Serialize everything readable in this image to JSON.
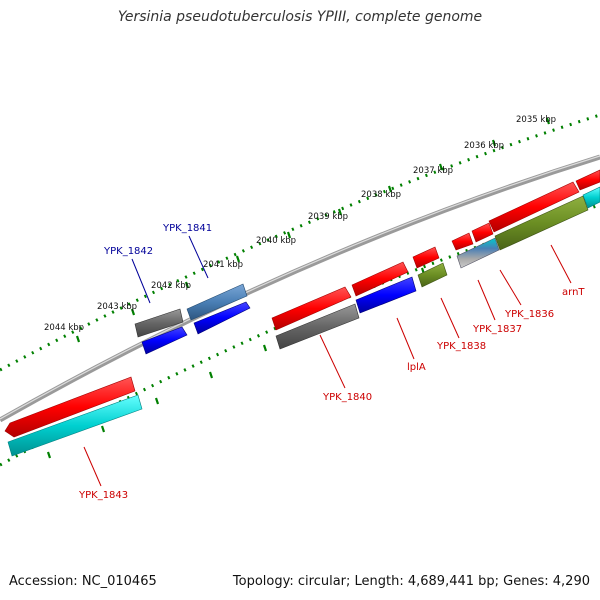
{
  "title": "Yersinia pseudotuberculosis YPIII, complete genome",
  "accession_text": "Accession: NC_010465",
  "info_text": "Topology: circular; Length: 4,689,441 bp; Genes: 4,290",
  "colors": {
    "forward_gene": "#ff0000",
    "reverse_gene": "#00cccc",
    "grey_gene": "#666666",
    "blue_gene": "#0000ff",
    "steelblue_gene": "#4a7fb5",
    "olive_gene": "#6b8e23",
    "backbone": "#888888",
    "ticks": "#008000",
    "label_red": "#cc0000",
    "label_blue": "#000099"
  },
  "kbp_ticks": [
    {
      "label": "2035 kbp"
    },
    {
      "label": "2036 kbp"
    },
    {
      "label": "2037 kbp"
    },
    {
      "label": "2038 kbp"
    },
    {
      "label": "2039 kbp"
    },
    {
      "label": "2040 kbp"
    },
    {
      "label": "2041 kbp"
    },
    {
      "label": "2042 kbp"
    },
    {
      "label": "2043 kbp"
    },
    {
      "label": "2044 kbp"
    }
  ],
  "gene_labels": [
    {
      "name": "YPK_1841"
    },
    {
      "name": "YPK_1842"
    },
    {
      "name": "YPK_1840"
    },
    {
      "name": "lplA"
    },
    {
      "name": "YPK_1838"
    },
    {
      "name": "YPK_1837"
    },
    {
      "name": "YPK_1836"
    },
    {
      "name": "arnT"
    },
    {
      "name": "YPK_1843"
    }
  ]
}
